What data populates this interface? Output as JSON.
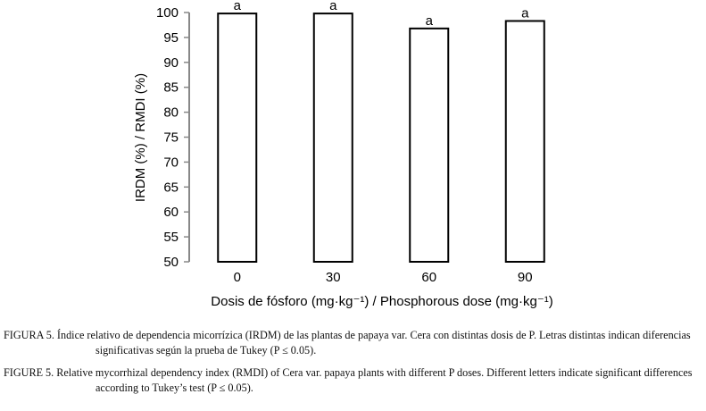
{
  "chart_data": {
    "type": "bar",
    "categories": [
      "0",
      "30",
      "60",
      "90"
    ],
    "values": [
      99.8,
      99.8,
      96.8,
      98.3
    ],
    "data_labels": [
      "a",
      "a",
      "a",
      "a"
    ],
    "xlabel": "Dosis de fósforo (mg·kg⁻¹) / Phosphorous dose (mg·kg⁻¹)",
    "ylabel": "IRDM (%) / RMDI (%)",
    "ylim": [
      50,
      100
    ],
    "yticks": [
      50,
      55,
      60,
      65,
      70,
      75,
      80,
      85,
      90,
      95,
      100
    ],
    "grid": false,
    "bar_fill": "#ffffff",
    "bar_stroke": "#000000",
    "axis_color": "#888888"
  },
  "captions": {
    "spanish": "FIGURA 5. Índice relativo de dependencia micorrízica (IRDM) de las plantas de papaya var. Cera con distintas dosis de P. Letras distintas indican diferencias significativas según la prueba de Tukey (P ≤ 0.05).",
    "english": "FIGURE 5. Relative mycorrhizal dependency index (RMDI) of Cera var. papaya plants with different P doses. Different letters indicate significant differences according to Tukey’s test (P ≤ 0.05)."
  }
}
